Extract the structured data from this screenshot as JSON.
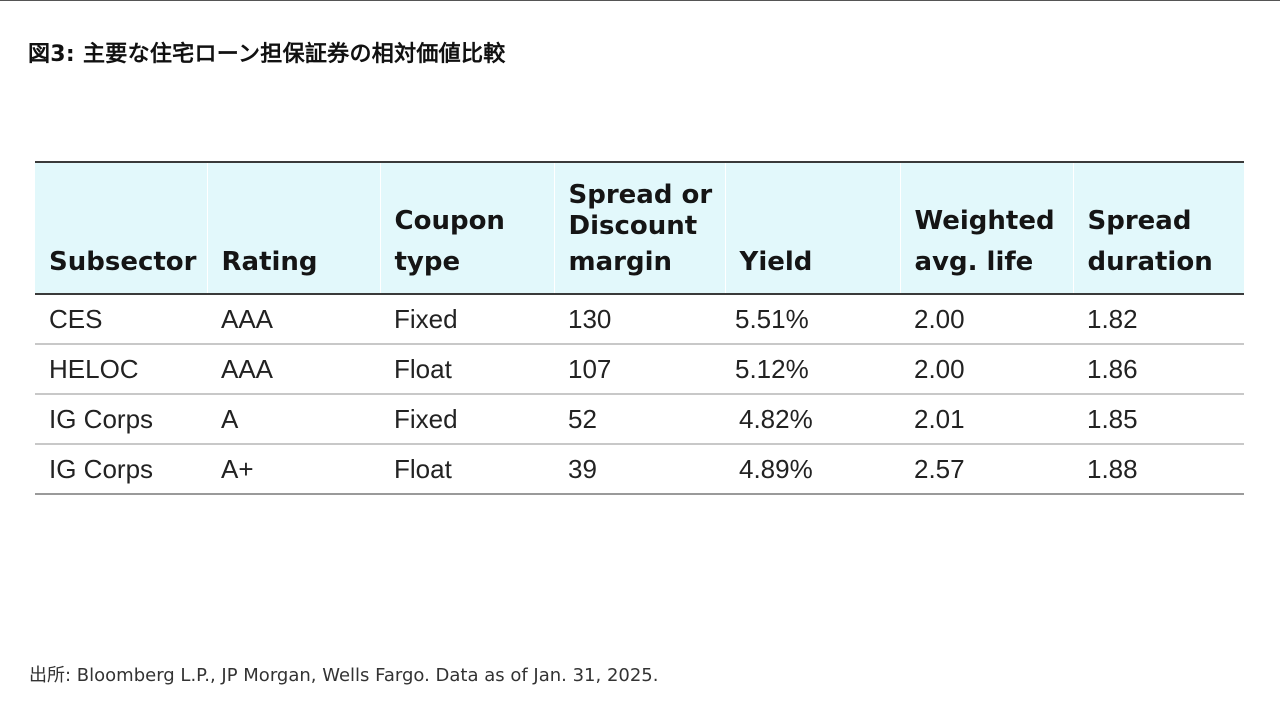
{
  "title": "図3: 主要な住宅ローン担保証券の相対価値比較",
  "table": {
    "headers": [
      {
        "lines": [
          "Subsector"
        ]
      },
      {
        "lines": [
          "Rating"
        ]
      },
      {
        "lines": [
          "Coupon",
          "type"
        ]
      },
      {
        "lines": [
          "Spread or",
          "Discount",
          "margin"
        ]
      },
      {
        "lines": [
          "Yield"
        ]
      },
      {
        "lines": [
          "Weighted",
          "avg. life"
        ]
      },
      {
        "lines": [
          "Spread",
          "duration"
        ]
      }
    ],
    "rows": [
      {
        "subsector": "CES",
        "rating": "AAA",
        "coupon_type": "Fixed",
        "spread": "130",
        "yield": "5.51%",
        "wal": "2.00",
        "spread_duration": "1.82"
      },
      {
        "subsector": "HELOC",
        "rating": "AAA",
        "coupon_type": "Float",
        "spread": "107",
        "yield": "5.12%",
        "wal": "2.00",
        "spread_duration": "1.86"
      },
      {
        "subsector": "IG Corps",
        "rating": "A",
        "coupon_type": "Fixed",
        "spread": "52",
        "yield": "4.82%",
        "wal": "2.01",
        "spread_duration": "1.85"
      },
      {
        "subsector": "IG Corps",
        "rating": "A+",
        "coupon_type": "Float",
        "spread": "39",
        "yield": "4.89%",
        "wal": "2.57",
        "spread_duration": "1.88"
      }
    ]
  },
  "source": "出所: Bloomberg L.P., JP Morgan, Wells Fargo. Data as of Jan. 31, 2025.",
  "colors": {
    "header_bg": "#e2f8fb",
    "rule_dark": "#3a3a3a",
    "rule_light": "#c8c8c8"
  }
}
